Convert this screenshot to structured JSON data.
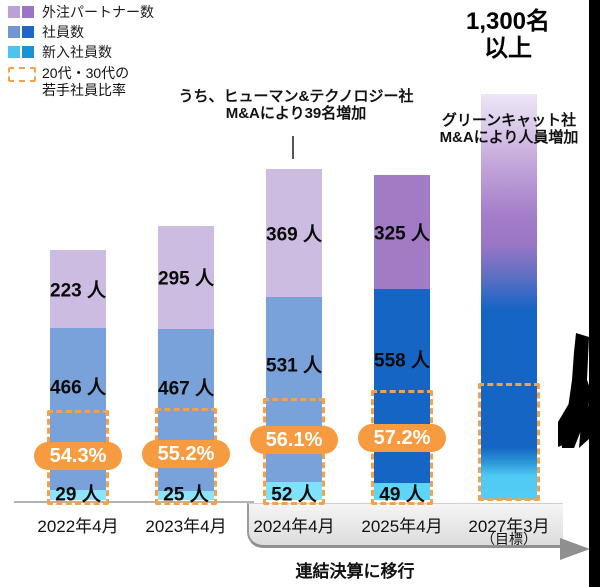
{
  "legend": {
    "items": [
      {
        "label": "外注パートナー数",
        "swatch_light": "#b9a3d6",
        "swatch_dark": "#9c74c6"
      },
      {
        "label": "社員数",
        "swatch_light": "#7096d2",
        "swatch_dark": "#1e66c8"
      },
      {
        "label": "新入社員数",
        "swatch_light": "#4fc3ee",
        "swatch_dark": "#1a93d4"
      },
      {
        "label_line1": "20代・30代の",
        "label_line2": "若手社員比率",
        "swatch_border": "#f5a04a"
      }
    ]
  },
  "headline": {
    "line1": "1,300名",
    "line2": "以上"
  },
  "annotations": {
    "ma2024_line1": "うち、ヒューマン&テクノロジー社",
    "ma2024_line2": "M&Aにより39名増加",
    "ma2027_line1": "グリーンキャット社",
    "ma2027_line2": "M&Aにより人員増加"
  },
  "footer": {
    "transition_label": "連結決算に移行",
    "goal_label": "（目標）"
  },
  "chart_data": {
    "type": "stacked-bar",
    "unit": "人",
    "categories": [
      "2022年4月",
      "2023年4月",
      "2024年4月",
      "2025年4月",
      "2027年3月"
    ],
    "series": [
      {
        "name": "新入社員数",
        "values": [
          29,
          25,
          52,
          49,
          null
        ],
        "colors": [
          "#8ce4fb",
          "#8ce4fb",
          "#7fe2fb",
          "#5ed5f8"
        ]
      },
      {
        "name": "社員数",
        "values": [
          466,
          467,
          531,
          558,
          null
        ],
        "colors": [
          "#78a2d9",
          "#78a2d9",
          "#78a2d9",
          "#1565c4"
        ]
      },
      {
        "name": "外注パートナー数",
        "values": [
          223,
          295,
          369,
          325,
          null
        ],
        "colors": [
          "#cdbce1",
          "#cdbce1",
          "#cdbce1",
          "#a17cc5"
        ]
      }
    ],
    "youth_ratio_labels": [
      "54.3%",
      "55.2%",
      "56.1%",
      "57.2%",
      null
    ],
    "target_bar_label": "1,300名以上",
    "accent_orange": "#f79b40",
    "gradient_bar_colors": [
      "#ece5f5",
      "#c2a6da",
      "#9d7ac7",
      "#1565c4",
      "#4fc9f4"
    ],
    "legend_position": "top-left",
    "grid": false
  }
}
